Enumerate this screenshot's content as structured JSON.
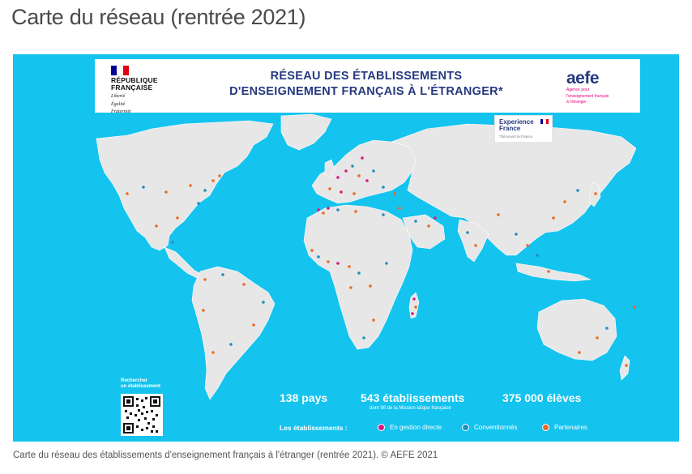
{
  "page": {
    "title": "Carte du réseau (rentrée 2021)",
    "caption": "Carte du réseau des établissements d'enseignement français à l'étranger (rentrée 2021). © AEFE 2021"
  },
  "poster": {
    "title_line1": "RÉSEAU DES ÉTABLISSEMENTS",
    "title_line2": "D'ENSEIGNEMENT FRANÇAIS À L'ÉTRANGER*",
    "republique": {
      "line1": "RÉPUBLIQUE",
      "line2": "FRANÇAISE",
      "motto1": "Liberté",
      "motto2": "Égalité",
      "motto3": "Fraternité"
    },
    "aefe": {
      "word": "aefe",
      "sub1": "Agence pour",
      "sub2": "l'enseignement français",
      "sub3": "à l'étranger"
    },
    "experience": {
      "line1": "Experience",
      "line2": "France",
      "sub": "*Découvrir la France"
    },
    "qr_label_line1": "Rechercher",
    "qr_label_line2": "un établissement",
    "stats": {
      "countries": "138 pays",
      "schools": "543 établissements",
      "schools_sub": "dont 98 de la Mission laïque française",
      "students": "375 000 élèves"
    },
    "legend": {
      "label": "Les établissements :",
      "items": [
        {
          "label": "En gestion directe",
          "color": "#d6197f"
        },
        {
          "label": "Conventionnés",
          "color": "#1f8fbd"
        },
        {
          "label": "Partenaires",
          "color": "#ec6a22"
        }
      ]
    }
  },
  "colors": {
    "ocean": "#14c3ee",
    "land": "#e7e7e7",
    "navy": "#26397f",
    "direct": "#d6197f",
    "conventionne": "#1f8fbd",
    "partenaire": "#ec6a22"
  }
}
